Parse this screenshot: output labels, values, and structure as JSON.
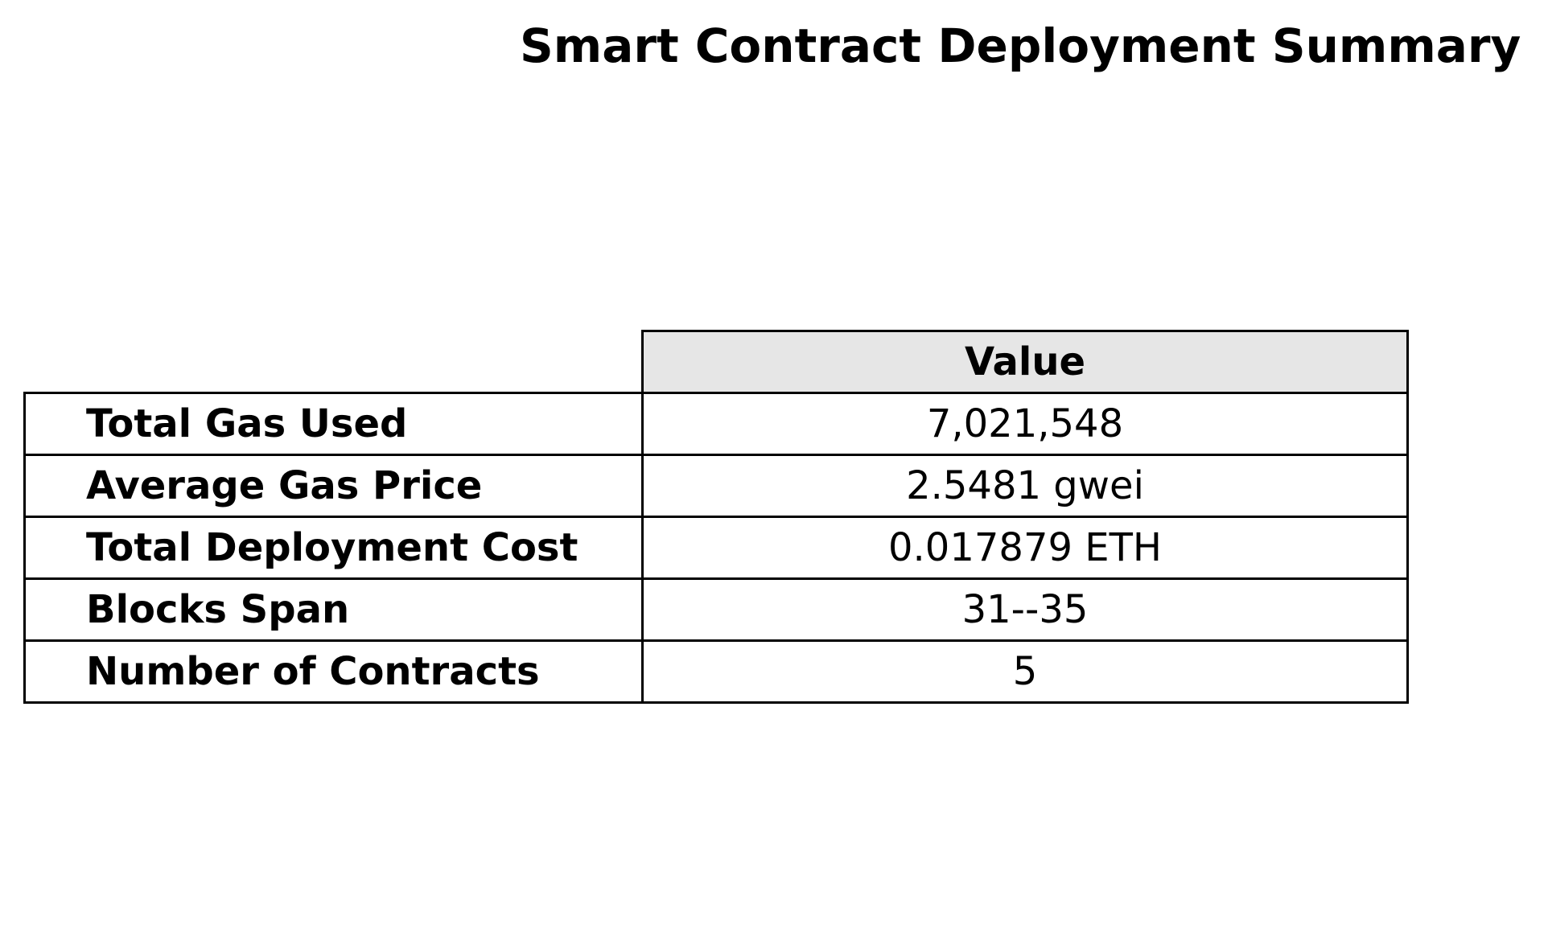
{
  "chart_data": {
    "type": "table",
    "title": "Smart Contract Deployment Summary",
    "columns": [
      "Value"
    ],
    "rows": [
      {
        "label": "Total Gas Used",
        "value": "7,021,548"
      },
      {
        "label": "Average Gas Price",
        "value": "2.5481 gwei"
      },
      {
        "label": "Total Deployment Cost",
        "value": "0.017879 ETH"
      },
      {
        "label": "Blocks Span",
        "value": "31--35"
      },
      {
        "label": "Number of Contracts",
        "value": "5"
      }
    ],
    "colors": {
      "header_background": "#e6e6e6",
      "border": "#000000",
      "text": "#000000"
    }
  }
}
